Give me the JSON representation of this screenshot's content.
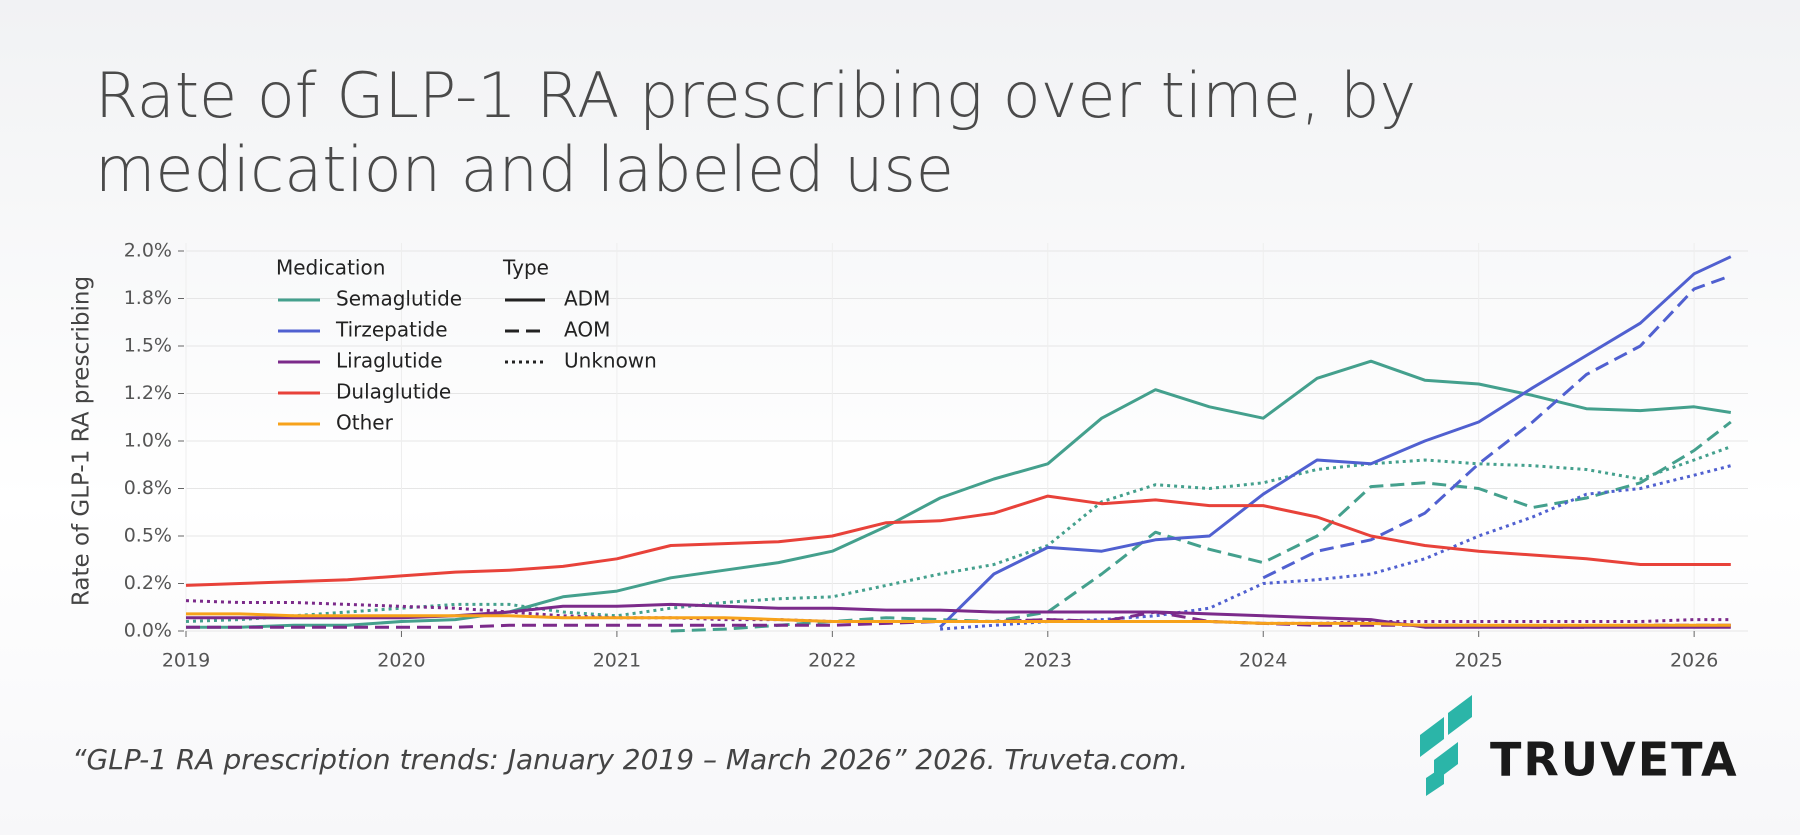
{
  "chart_data": {
    "type": "line",
    "title": "Rate of GLP-1 RA prescribing over time, by medication and labeled use",
    "y_label": "Rate of GLP-1 RA prescribing",
    "legend_medication_title": "Medication",
    "legend_type_title": "Type",
    "x": [
      2019,
      2019.25,
      2019.5,
      2019.75,
      2020,
      2020.25,
      2020.5,
      2020.75,
      2021,
      2021.25,
      2021.5,
      2021.75,
      2022,
      2022.25,
      2022.5,
      2022.75,
      2023,
      2023.25,
      2023.5,
      2023.75,
      2024,
      2024.25,
      2024.5,
      2024.75,
      2025,
      2025.25,
      2025.5,
      2025.75,
      2026,
      2026.17
    ],
    "xlim": [
      2019,
      2026.25
    ],
    "xticks": [
      2019,
      2020,
      2021,
      2022,
      2023,
      2024,
      2025,
      2026
    ],
    "ylim": [
      0,
      2.0
    ],
    "yticks": [
      {
        "value": 0,
        "label": "0.0%"
      },
      {
        "value": 0.25,
        "label": "0.2%"
      },
      {
        "value": 0.5,
        "label": "0.5%"
      },
      {
        "value": 0.75,
        "label": "0.8%"
      },
      {
        "value": 1.0,
        "label": "1.0%"
      },
      {
        "value": 1.25,
        "label": "1.2%"
      },
      {
        "value": 1.5,
        "label": "1.5%"
      },
      {
        "value": 1.75,
        "label": "1.8%"
      },
      {
        "value": 2.0,
        "label": "2.0%"
      }
    ],
    "grid": true,
    "types": [
      {
        "name": "ADM",
        "dash": "none"
      },
      {
        "name": "AOM",
        "dash": "14 7"
      },
      {
        "name": "Unknown",
        "dash": "3 4"
      }
    ],
    "medications": [
      {
        "name": "Semaglutide",
        "color": "#44a08d",
        "values": {
          "ADM": [
            0.02,
            0.02,
            0.03,
            0.03,
            0.05,
            0.06,
            0.1,
            0.18,
            0.21,
            0.28,
            0.32,
            0.36,
            0.42,
            0.55,
            0.7,
            0.8,
            0.88,
            1.12,
            1.27,
            1.18,
            1.12,
            1.33,
            1.42,
            1.32,
            1.3,
            1.24,
            1.17,
            1.16,
            1.18,
            1.15
          ],
          "AOM": [
            null,
            null,
            null,
            null,
            null,
            null,
            null,
            null,
            null,
            0,
            0.01,
            0.03,
            0.05,
            0.07,
            0.06,
            0.05,
            0.1,
            0.3,
            0.52,
            0.43,
            0.36,
            0.5,
            0.76,
            0.78,
            0.75,
            0.65,
            0.7,
            0.78,
            0.95,
            1.1
          ],
          "Unknown": [
            0.05,
            0.06,
            0.08,
            0.1,
            0.12,
            0.14,
            0.14,
            0.1,
            0.08,
            0.12,
            0.15,
            0.17,
            0.18,
            0.24,
            0.3,
            0.35,
            0.45,
            0.68,
            0.77,
            0.75,
            0.78,
            0.85,
            0.88,
            0.9,
            0.88,
            0.87,
            0.85,
            0.8,
            0.9,
            0.97
          ]
        }
      },
      {
        "name": "Tirzepatide",
        "color": "#5060d0",
        "values": {
          "ADM": [
            null,
            null,
            null,
            null,
            null,
            null,
            null,
            null,
            null,
            null,
            null,
            null,
            null,
            null,
            0.02,
            0.3,
            0.44,
            0.42,
            0.48,
            0.5,
            0.72,
            0.9,
            0.88,
            1.0,
            1.1,
            1.28,
            1.45,
            1.62,
            1.88,
            1.97
          ],
          "AOM": [
            null,
            null,
            null,
            null,
            null,
            null,
            null,
            null,
            null,
            null,
            null,
            null,
            null,
            null,
            null,
            null,
            null,
            null,
            null,
            null,
            0.28,
            0.42,
            0.48,
            0.62,
            0.88,
            1.1,
            1.35,
            1.5,
            1.8,
            1.87
          ],
          "Unknown": [
            null,
            null,
            null,
            null,
            null,
            null,
            null,
            null,
            null,
            null,
            null,
            null,
            null,
            null,
            0.01,
            0.03,
            0.05,
            0.06,
            0.08,
            0.12,
            0.25,
            0.27,
            0.3,
            0.38,
            0.5,
            0.6,
            0.72,
            0.75,
            0.82,
            0.87
          ]
        }
      },
      {
        "name": "Liraglutide",
        "color": "#7b2a8a",
        "values": {
          "ADM": [
            0.07,
            0.07,
            0.07,
            0.07,
            0.07,
            0.08,
            0.1,
            0.13,
            0.13,
            0.14,
            0.13,
            0.12,
            0.12,
            0.11,
            0.11,
            0.1,
            0.1,
            0.1,
            0.1,
            0.09,
            0.08,
            0.07,
            0.06,
            0.02,
            0.02,
            0.02,
            0.02,
            0.02,
            0.02,
            0.02
          ],
          "AOM": [
            0.02,
            0.02,
            0.02,
            0.02,
            0.02,
            0.02,
            0.03,
            0.03,
            0.03,
            0.03,
            0.03,
            0.03,
            0.03,
            0.04,
            0.05,
            0.05,
            0.06,
            0.05,
            0.1,
            0.05,
            0.04,
            0.03,
            0.03,
            0.03,
            0.03,
            0.02,
            0.02,
            0.03,
            0.03,
            0.03
          ],
          "Unknown": [
            0.16,
            0.15,
            0.15,
            0.14,
            0.13,
            0.12,
            0.1,
            0.08,
            0.07,
            0.07,
            0.06,
            0.06,
            0.05,
            0.05,
            0.05,
            0.05,
            0.06,
            0.05,
            0.05,
            0.05,
            0.04,
            0.04,
            0.05,
            0.05,
            0.05,
            0.05,
            0.05,
            0.05,
            0.06,
            0.06
          ]
        }
      },
      {
        "name": "Dulaglutide",
        "color": "#e8423a",
        "values": {
          "ADM": [
            0.24,
            0.25,
            0.26,
            0.27,
            0.29,
            0.31,
            0.32,
            0.34,
            0.38,
            0.45,
            0.46,
            0.47,
            0.5,
            0.57,
            0.58,
            0.62,
            0.71,
            0.67,
            0.69,
            0.66,
            0.66,
            0.6,
            0.5,
            0.45,
            0.42,
            0.4,
            0.38,
            0.35,
            0.35,
            0.35
          ]
        }
      },
      {
        "name": "Other",
        "color": "#f7a21b",
        "values": {
          "ADM": [
            0.09,
            0.09,
            0.08,
            0.08,
            0.08,
            0.08,
            0.08,
            0.07,
            0.07,
            0.07,
            0.07,
            0.06,
            0.05,
            0.05,
            0.05,
            0.05,
            0.05,
            0.05,
            0.05,
            0.05,
            0.04,
            0.04,
            0.04,
            0.03,
            0.03,
            0.03,
            0.03,
            0.03,
            0.03,
            0.03
          ]
        }
      }
    ]
  },
  "source": "“GLP-1 RA prescription trends: January 2019 – March 2026” 2026. Truveta.com.",
  "brand": "TRUVETA"
}
